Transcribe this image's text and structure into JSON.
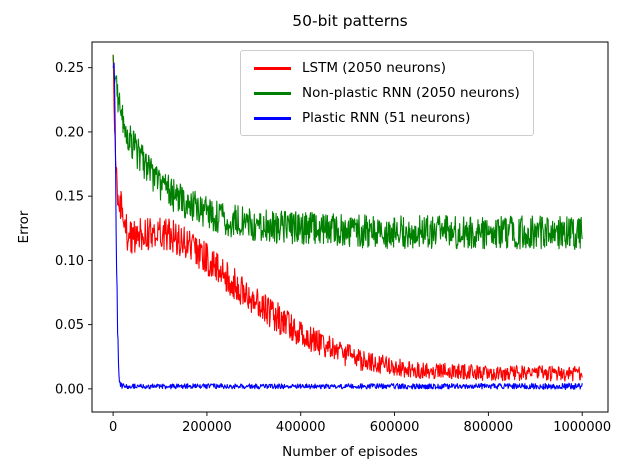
{
  "chart_data": {
    "type": "line",
    "title": "50-bit patterns",
    "xlabel": "Number of episodes",
    "ylabel": "Error",
    "xlim": [
      -45000,
      1055000
    ],
    "ylim": [
      -0.018,
      0.27
    ],
    "xticks": [
      0,
      200000,
      400000,
      600000,
      800000,
      1000000
    ],
    "yticks": [
      0,
      0.05,
      0.1,
      0.15,
      0.2,
      0.25
    ],
    "grid": false,
    "legend_position": "upper center",
    "series": [
      {
        "id": "lstm",
        "name": "LSTM (2050 neurons)",
        "color": "#ff0000",
        "keypoints": [
          [
            0,
            0.26,
            0
          ],
          [
            1500,
            0.225,
            0.015
          ],
          [
            5000,
            0.185,
            0.02
          ],
          [
            10000,
            0.155,
            0.02
          ],
          [
            20000,
            0.13,
            0.015
          ],
          [
            35000,
            0.118,
            0.013
          ],
          [
            60000,
            0.12,
            0.013
          ],
          [
            90000,
            0.122,
            0.013
          ],
          [
            120000,
            0.12,
            0.013
          ],
          [
            150000,
            0.115,
            0.013
          ],
          [
            180000,
            0.107,
            0.013
          ],
          [
            210000,
            0.098,
            0.013
          ],
          [
            240000,
            0.089,
            0.013
          ],
          [
            270000,
            0.079,
            0.013
          ],
          [
            300000,
            0.07,
            0.012
          ],
          [
            330000,
            0.061,
            0.012
          ],
          [
            360000,
            0.053,
            0.012
          ],
          [
            390000,
            0.046,
            0.011
          ],
          [
            420000,
            0.039,
            0.01
          ],
          [
            450000,
            0.034,
            0.01
          ],
          [
            480000,
            0.029,
            0.009
          ],
          [
            510000,
            0.025,
            0.009
          ],
          [
            540000,
            0.021,
            0.008
          ],
          [
            570000,
            0.019,
            0.008
          ],
          [
            600000,
            0.017,
            0.007
          ],
          [
            640000,
            0.015,
            0.007
          ],
          [
            680000,
            0.014,
            0.007
          ],
          [
            720000,
            0.0135,
            0.006
          ],
          [
            760000,
            0.013,
            0.006
          ],
          [
            800000,
            0.0125,
            0.006
          ],
          [
            900000,
            0.012,
            0.006
          ],
          [
            1000000,
            0.012,
            0.006
          ]
        ]
      },
      {
        "id": "nonplastic-rnn",
        "name": "Non-plastic RNN (2050 neurons)",
        "color": "#008000",
        "keypoints": [
          [
            0,
            0.26,
            0
          ],
          [
            3000,
            0.245,
            0.01
          ],
          [
            10000,
            0.228,
            0.012
          ],
          [
            20000,
            0.212,
            0.013
          ],
          [
            35000,
            0.196,
            0.013
          ],
          [
            50000,
            0.185,
            0.013
          ],
          [
            70000,
            0.172,
            0.013
          ],
          [
            90000,
            0.163,
            0.013
          ],
          [
            110000,
            0.156,
            0.013
          ],
          [
            130000,
            0.15,
            0.013
          ],
          [
            150000,
            0.145,
            0.013
          ],
          [
            175000,
            0.141,
            0.013
          ],
          [
            200000,
            0.137,
            0.013
          ],
          [
            230000,
            0.133,
            0.013
          ],
          [
            260000,
            0.13,
            0.013
          ],
          [
            300000,
            0.128,
            0.013
          ],
          [
            350000,
            0.126,
            0.013
          ],
          [
            400000,
            0.125,
            0.013
          ],
          [
            450000,
            0.124,
            0.013
          ],
          [
            500000,
            0.123,
            0.013
          ],
          [
            600000,
            0.122,
            0.013
          ],
          [
            700000,
            0.122,
            0.013
          ],
          [
            800000,
            0.122,
            0.013
          ],
          [
            900000,
            0.122,
            0.013
          ],
          [
            1000000,
            0.121,
            0.013
          ]
        ]
      },
      {
        "id": "plastic-rnn",
        "name": "Plastic RNN (51 neurons)",
        "color": "#0000ff",
        "keypoints": [
          [
            0,
            0.25,
            0
          ],
          [
            2500,
            0.25,
            0.005
          ],
          [
            6000,
            0.15,
            0.02
          ],
          [
            9000,
            0.05,
            0.01
          ],
          [
            13000,
            0.005,
            0.003
          ],
          [
            20000,
            0.002,
            0.002
          ],
          [
            200000,
            0.002,
            0.002
          ],
          [
            500000,
            0.002,
            0.002
          ],
          [
            800000,
            0.002,
            0.0022
          ],
          [
            1000000,
            0.002,
            0.0025
          ]
        ]
      }
    ]
  }
}
